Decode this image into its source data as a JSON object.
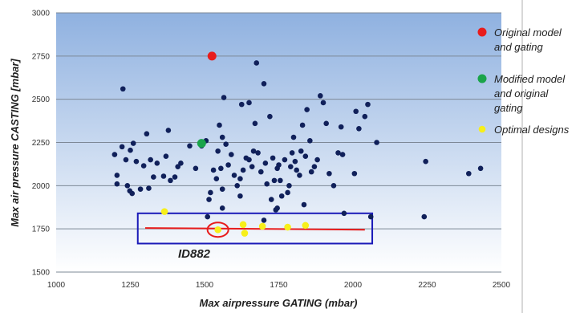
{
  "chart_data": {
    "type": "scatter",
    "xlabel": "Max airpressure GATING (mbar)",
    "ylabel": "Max air pressure CASTING [mbar]",
    "xlim": [
      1000,
      2500
    ],
    "ylim": [
      1500,
      3000
    ],
    "xticks": [
      "1000",
      "1250",
      "1500",
      "1750",
      "2000",
      "2250",
      "2500"
    ],
    "yticks": [
      "1500",
      "1750",
      "2000",
      "2250",
      "2500",
      "2750",
      "3000"
    ],
    "grid": "horizontal",
    "legend_position": "right",
    "annotation": "ID882",
    "series": [
      {
        "name": "",
        "color": "#10205a",
        "points": [
          [
            1197,
            2180
          ],
          [
            1205,
            2010
          ],
          [
            1205,
            2060
          ],
          [
            1222,
            2225
          ],
          [
            1225,
            2560
          ],
          [
            1235,
            2150
          ],
          [
            1240,
            2000
          ],
          [
            1248,
            1970
          ],
          [
            1250,
            2205
          ],
          [
            1256,
            1955
          ],
          [
            1260,
            2245
          ],
          [
            1270,
            2140
          ],
          [
            1284,
            1980
          ],
          [
            1295,
            2115
          ],
          [
            1305,
            2300
          ],
          [
            1312,
            1985
          ],
          [
            1318,
            2150
          ],
          [
            1328,
            2050
          ],
          [
            1340,
            2130
          ],
          [
            1362,
            2055
          ],
          [
            1370,
            2170
          ],
          [
            1378,
            2320
          ],
          [
            1385,
            2030
          ],
          [
            1400,
            2050
          ],
          [
            1410,
            2110
          ],
          [
            1420,
            2130
          ],
          [
            1450,
            2230
          ],
          [
            1470,
            2100
          ],
          [
            1490,
            2230
          ],
          [
            1505,
            2260
          ],
          [
            1510,
            1820
          ],
          [
            1515,
            1920
          ],
          [
            1520,
            1960
          ],
          [
            1530,
            2090
          ],
          [
            1540,
            2040
          ],
          [
            1545,
            2200
          ],
          [
            1550,
            2350
          ],
          [
            1555,
            2100
          ],
          [
            1560,
            2280
          ],
          [
            1565,
            2510
          ],
          [
            1572,
            2240
          ],
          [
            1580,
            2120
          ],
          [
            1590,
            2180
          ],
          [
            1600,
            2060
          ],
          [
            1610,
            2000
          ],
          [
            1620,
            2040
          ],
          [
            1625,
            2470
          ],
          [
            1630,
            2090
          ],
          [
            1640,
            2160
          ],
          [
            1650,
            2150
          ],
          [
            1660,
            2110
          ],
          [
            1665,
            2200
          ],
          [
            1670,
            2360
          ],
          [
            1675,
            2710
          ],
          [
            1680,
            2190
          ],
          [
            1690,
            2080
          ],
          [
            1700,
            2590
          ],
          [
            1705,
            2130
          ],
          [
            1710,
            2010
          ],
          [
            1720,
            2400
          ],
          [
            1725,
            1920
          ],
          [
            1730,
            2160
          ],
          [
            1735,
            2030
          ],
          [
            1740,
            1860
          ],
          [
            1745,
            2100
          ],
          [
            1750,
            2120
          ],
          [
            1755,
            2030
          ],
          [
            1760,
            1940
          ],
          [
            1770,
            2150
          ],
          [
            1780,
            1960
          ],
          [
            1785,
            2000
          ],
          [
            1790,
            2110
          ],
          [
            1795,
            2190
          ],
          [
            1800,
            2280
          ],
          [
            1805,
            2140
          ],
          [
            1810,
            2090
          ],
          [
            1820,
            2060
          ],
          [
            1825,
            2200
          ],
          [
            1830,
            2350
          ],
          [
            1835,
            1890
          ],
          [
            1840,
            2170
          ],
          [
            1845,
            2440
          ],
          [
            1855,
            2260
          ],
          [
            1860,
            2080
          ],
          [
            1870,
            2110
          ],
          [
            1880,
            2150
          ],
          [
            1890,
            2520
          ],
          [
            1900,
            2480
          ],
          [
            1910,
            2360
          ],
          [
            1920,
            2070
          ],
          [
            1935,
            2000
          ],
          [
            1950,
            2190
          ],
          [
            1960,
            2340
          ],
          [
            1965,
            2180
          ],
          [
            2005,
            2070
          ],
          [
            2010,
            2430
          ],
          [
            2020,
            2330
          ],
          [
            2040,
            2400
          ],
          [
            2050,
            2470
          ],
          [
            2080,
            2250
          ],
          [
            2245,
            2140
          ],
          [
            2390,
            2070
          ],
          [
            2430,
            2100
          ],
          [
            1970,
            1840
          ],
          [
            2060,
            1820
          ],
          [
            2240,
            1820
          ],
          [
            1560,
            1870
          ],
          [
            1560,
            1980
          ],
          [
            1620,
            1940
          ],
          [
            1700,
            1800
          ],
          [
            1745,
            1870
          ],
          [
            1650,
            2480
          ]
        ]
      },
      {
        "name": "Original model and gating",
        "color": "#e81c1c",
        "points": [
          [
            1525,
            2750
          ]
        ]
      },
      {
        "name": "Modified model and original gating",
        "color": "#1aa44a",
        "points": [
          [
            1490,
            2245
          ]
        ]
      },
      {
        "name": "Optimal designs",
        "color": "#f7ef1a",
        "points": [
          [
            1365,
            1850
          ],
          [
            1545,
            1745
          ],
          [
            1630,
            1775
          ],
          [
            1635,
            1725
          ],
          [
            1695,
            1765
          ],
          [
            1780,
            1760
          ],
          [
            1840,
            1770
          ]
        ]
      }
    ]
  }
}
